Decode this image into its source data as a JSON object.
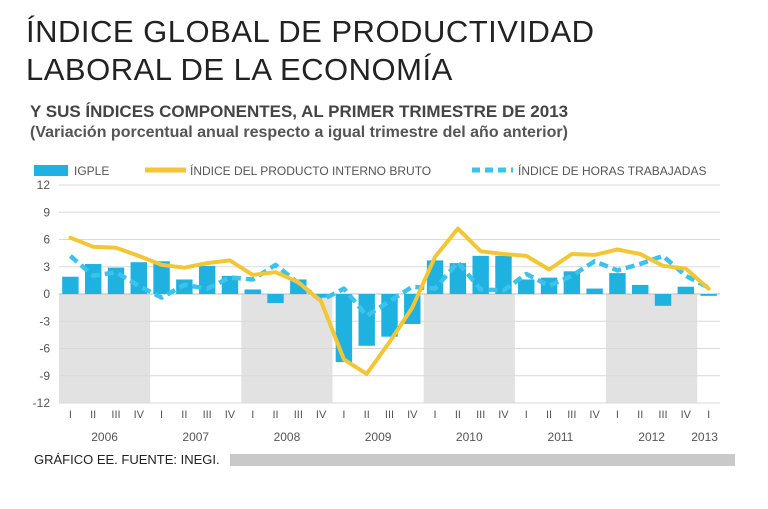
{
  "title": {
    "line1": "ÍNDICE GLOBAL DE PRODUCTIVIDAD",
    "line2": "LABORAL DE LA ECONOMÍA"
  },
  "subtitle": "Y SUS ÍNDICES COMPONENTES, AL PRIMER TRIMESTRE DE 2013",
  "subtitle2": "(Variación porcentual anual respecto a igual trimestre del año anterior)",
  "footer": "GRÁFICO EE. FUENTE: INEGI.",
  "colors": {
    "igple": "#1fb1e0",
    "pib": "#f2c635",
    "horas": "#3cc3ec",
    "band": "#e2e2e2",
    "grid": "#d9d9d9",
    "text": "#555555"
  },
  "chart_data": {
    "type": "bar",
    "legend": [
      "IGPLE",
      "ÍNDICE DEL PRODUCTO INTERNO BRUTO",
      "ÍNDICE DE HORAS TRABAJADAS"
    ],
    "ylim": [
      -12,
      12
    ],
    "yticks": [
      "12",
      "9",
      "6",
      "3",
      "0",
      "-3",
      "-6",
      "-9",
      "-12"
    ],
    "yticks_values": [
      12,
      9,
      6,
      3,
      0,
      -3,
      -6,
      -9,
      -12
    ],
    "quarter_labels": [
      "I",
      "II",
      "III",
      "IV",
      "I",
      "II",
      "III",
      "IV",
      "I",
      "II",
      "III",
      "IV",
      "I",
      "II",
      "III",
      "IV",
      "I",
      "II",
      "III",
      "IV",
      "I",
      "II",
      "III",
      "IV",
      "I",
      "II",
      "III",
      "IV",
      "I"
    ],
    "years": [
      "2006",
      "2007",
      "2008",
      "2009",
      "2010",
      "2011",
      "2012",
      "2013"
    ],
    "series": [
      {
        "name": "IGPLE",
        "type": "bar",
        "values": [
          1.9,
          3.3,
          2.9,
          3.5,
          3.6,
          1.6,
          3.1,
          2.0,
          0.5,
          -1.0,
          1.6,
          -0.4,
          -7.5,
          -5.7,
          -4.7,
          -3.3,
          3.7,
          3.4,
          4.2,
          4.2,
          1.6,
          1.8,
          2.5,
          0.6,
          2.3,
          1.0,
          -1.3,
          0.8,
          -0.2
        ]
      },
      {
        "name": "ÍNDICE DEL PRODUCTO INTERNO BRUTO",
        "type": "line",
        "values": [
          6.2,
          5.2,
          5.1,
          4.2,
          3.2,
          2.9,
          3.4,
          3.7,
          2.1,
          2.4,
          1.3,
          -0.8,
          -7.2,
          -8.8,
          -5.3,
          -1.5,
          4.1,
          7.2,
          4.7,
          4.4,
          4.2,
          2.7,
          4.4,
          4.3,
          4.9,
          4.4,
          3.1,
          2.8,
          0.6
        ]
      },
      {
        "name": "ÍNDICE DE HORAS TRABAJADAS",
        "type": "line",
        "values": [
          4.2,
          2.0,
          2.4,
          0.9,
          -0.4,
          1.0,
          0.6,
          1.8,
          1.6,
          3.2,
          1.2,
          -0.7,
          0.6,
          -2.4,
          -0.8,
          0.8,
          0.6,
          3.5,
          0.5,
          0.4,
          2.2,
          0.9,
          2.0,
          3.6,
          2.6,
          3.3,
          4.2,
          2.0,
          0.7
        ]
      }
    ]
  }
}
